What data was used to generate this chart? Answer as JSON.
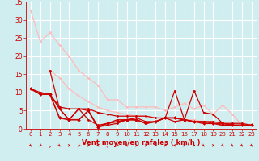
{
  "background_color": "#d0eef0",
  "grid_color": "#ffffff",
  "xlabel": "Vent moyen/en rafales ( km/h )",
  "xlabel_color": "#cc0000",
  "xlabel_fontsize": 6,
  "tick_color": "#cc0000",
  "tick_fontsize": 5,
  "ylim": [
    0,
    35
  ],
  "xlim": [
    -0.5,
    23.5
  ],
  "yticks": [
    0,
    5,
    10,
    15,
    20,
    25,
    30,
    35
  ],
  "xticks": [
    0,
    1,
    2,
    3,
    4,
    5,
    6,
    7,
    8,
    9,
    10,
    11,
    12,
    13,
    14,
    15,
    16,
    17,
    18,
    19,
    20,
    21,
    22,
    23
  ],
  "series": [
    {
      "x": [
        0,
        1,
        2,
        3,
        4,
        5,
        6,
        7,
        8,
        9,
        10,
        11,
        12,
        13,
        14,
        15,
        16,
        17,
        18,
        19,
        20,
        21,
        22,
        23
      ],
      "y": [
        32.5,
        24,
        26.5,
        23,
        20,
        16,
        14,
        12,
        8,
        8,
        6,
        6,
        6,
        6,
        5,
        6,
        7,
        5.5,
        6.5,
        4,
        6.5,
        4,
        1,
        1
      ],
      "color": "#ffbbbb",
      "linewidth": 0.9,
      "marker": "D",
      "markersize": 1.5
    },
    {
      "x": [
        2,
        3,
        4,
        5,
        6,
        7,
        8,
        9,
        10,
        11,
        12,
        13,
        14,
        15,
        16,
        17,
        18,
        19,
        20,
        21,
        22,
        23
      ],
      "y": [
        16,
        14,
        11,
        9,
        7.5,
        6,
        5,
        4.5,
        4,
        3.5,
        3.5,
        3,
        3,
        3,
        2.5,
        2.5,
        2,
        2,
        1.5,
        1,
        1,
        1
      ],
      "color": "#ffbbbb",
      "linewidth": 0.9,
      "marker": "D",
      "markersize": 1.5
    },
    {
      "x": [
        0,
        1,
        2,
        3,
        4,
        5,
        6,
        7,
        8,
        9,
        10,
        11,
        12,
        13,
        14,
        15,
        16,
        17,
        18,
        19,
        20,
        21,
        22,
        23
      ],
      "y": [
        11,
        9.5,
        9.5,
        5.5,
        2.5,
        5.5,
        2.5,
        1.0,
        1.5,
        2.5,
        2.5,
        3,
        2,
        2,
        3,
        10.5,
        2.5,
        10.5,
        4.5,
        4,
        1.5,
        1.5,
        1.5,
        1
      ],
      "color": "#cc0000",
      "linewidth": 0.9,
      "marker": "D",
      "markersize": 1.5
    },
    {
      "x": [
        2,
        3,
        4,
        5,
        6,
        7,
        8,
        9,
        10,
        11,
        12,
        13,
        14,
        15,
        16,
        17,
        18,
        19,
        20,
        21,
        22,
        23
      ],
      "y": [
        16,
        5.5,
        2.5,
        5.5,
        5,
        0.5,
        1.0,
        1.5,
        2.5,
        2.5,
        1.5,
        2,
        3,
        2,
        2.5,
        2,
        2,
        2,
        1.5,
        1,
        1,
        1
      ],
      "color": "#cc0000",
      "linewidth": 0.9,
      "marker": "D",
      "markersize": 1.5
    },
    {
      "x": [
        0,
        1,
        2,
        3,
        4,
        5,
        6,
        7,
        8,
        9,
        10,
        11,
        12,
        13,
        14,
        15,
        16,
        17,
        18,
        19,
        20,
        21,
        22,
        23
      ],
      "y": [
        11,
        9.5,
        9.5,
        3,
        2.5,
        2.5,
        5,
        0.5,
        1.5,
        2,
        2.5,
        2.5,
        1.5,
        2,
        3,
        3,
        2.5,
        2,
        1.5,
        1.5,
        1,
        1,
        1,
        1
      ],
      "color": "#cc0000",
      "linewidth": 1.2,
      "marker": "D",
      "markersize": 2.0
    },
    {
      "x": [
        0,
        1,
        2,
        3,
        4,
        5,
        6,
        7,
        8,
        9,
        10,
        11,
        12,
        13,
        14,
        15,
        16,
        17,
        18,
        19,
        20,
        21,
        22,
        23
      ],
      "y": [
        11,
        10,
        9.5,
        6,
        5.5,
        5.5,
        5.5,
        4.5,
        4,
        3.5,
        3.5,
        3.5,
        3.5,
        3,
        3,
        3,
        2.5,
        2,
        2,
        1.5,
        1.5,
        1,
        1,
        1
      ],
      "color": "#cc0000",
      "linewidth": 0.9,
      "marker": "D",
      "markersize": 1.5
    }
  ],
  "wind_arrows": {
    "x": [
      0,
      1,
      2,
      3,
      4,
      5,
      6,
      7,
      8,
      9,
      10,
      11,
      12,
      13,
      14,
      15,
      16,
      17,
      18,
      19,
      20,
      21,
      22,
      23
    ],
    "angles_deg": [
      45,
      -45,
      0,
      45,
      90,
      -45,
      -45,
      -90,
      0,
      -45,
      45,
      90,
      90,
      90,
      -45,
      -90,
      90,
      90,
      45,
      90,
      45,
      45,
      45,
      45
    ],
    "color": "#cc0000",
    "size": 4
  }
}
